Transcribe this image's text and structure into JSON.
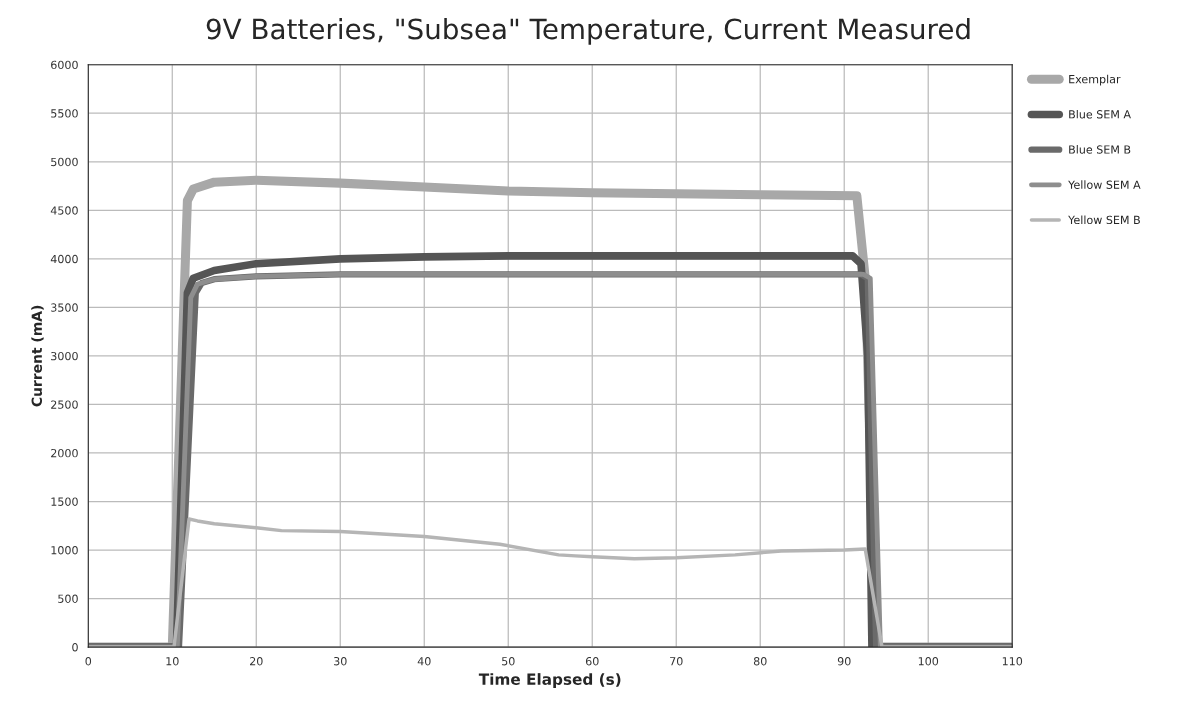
{
  "chart_data": {
    "type": "line",
    "title": "9V Batteries, \"Subsea\" Temperature, Current Measured",
    "xlabel": "Time Elapsed (s)",
    "ylabel": "Current (mA)",
    "xlim": [
      0,
      110
    ],
    "xticks": [
      0,
      10,
      20,
      30,
      40,
      50,
      60,
      70,
      80,
      90,
      100,
      110
    ],
    "ylim": [
      0,
      6000
    ],
    "yticks": [
      0,
      500,
      1000,
      1500,
      2000,
      2500,
      3000,
      3500,
      4000,
      4500,
      5000,
      5500,
      6000
    ],
    "grid": true,
    "legend": "right",
    "marker": "none",
    "line_style": "solid",
    "series": [
      {
        "name": "Exemplar",
        "color": "#a8a8a8",
        "x": [
          0,
          10,
          11.8,
          12.5,
          15,
          20,
          30,
          40,
          50,
          60,
          70,
          80,
          91.5,
          92.5,
          93.8,
          110
        ],
        "values": [
          0,
          0,
          4600,
          4720,
          4790,
          4810,
          4780,
          4740,
          4700,
          4680,
          4670,
          4660,
          4650,
          3800,
          0,
          0
        ]
      },
      {
        "name": "Blue SEM A",
        "color": "#555555",
        "x": [
          0,
          10.5,
          11.8,
          12.5,
          15,
          20,
          30,
          40,
          50,
          60,
          70,
          80,
          91,
          92,
          92.8,
          93.3,
          110
        ],
        "values": [
          0,
          0,
          3650,
          3800,
          3880,
          3950,
          4000,
          4020,
          4030,
          4030,
          4030,
          4030,
          4030,
          3950,
          3000,
          0,
          0
        ]
      },
      {
        "name": "Blue SEM B",
        "color": "#6a6a6a",
        "x": [
          0,
          10.8,
          12.8,
          13.5,
          15,
          20,
          30,
          40,
          50,
          60,
          70,
          80,
          92,
          92.8,
          93.8,
          110
        ],
        "values": [
          0,
          0,
          3650,
          3750,
          3790,
          3820,
          3840,
          3840,
          3840,
          3840,
          3840,
          3840,
          3840,
          3800,
          0,
          0
        ]
      },
      {
        "name": "Yellow SEM A",
        "color": "#8e8e8e",
        "x": [
          0,
          10.6,
          12.2,
          13,
          15,
          20,
          30,
          40,
          50,
          60,
          70,
          80,
          92.3,
          93.1,
          94.3,
          110
        ],
        "values": [
          0,
          0,
          3600,
          3740,
          3790,
          3820,
          3840,
          3840,
          3840,
          3840,
          3840,
          3840,
          3840,
          3800,
          0,
          0
        ]
      },
      {
        "name": "Yellow SEM B",
        "color": "#b5b5b5",
        "x": [
          0,
          10.2,
          12,
          13,
          15,
          20,
          23,
          30,
          40,
          49,
          56,
          58,
          60,
          65,
          70,
          77,
          82.5,
          90,
          92.5,
          94.5,
          110
        ],
        "values": [
          0,
          0,
          1320,
          1300,
          1270,
          1230,
          1200,
          1190,
          1140,
          1060,
          950,
          940,
          930,
          910,
          920,
          950,
          990,
          1000,
          1010,
          0,
          0
        ]
      }
    ]
  }
}
